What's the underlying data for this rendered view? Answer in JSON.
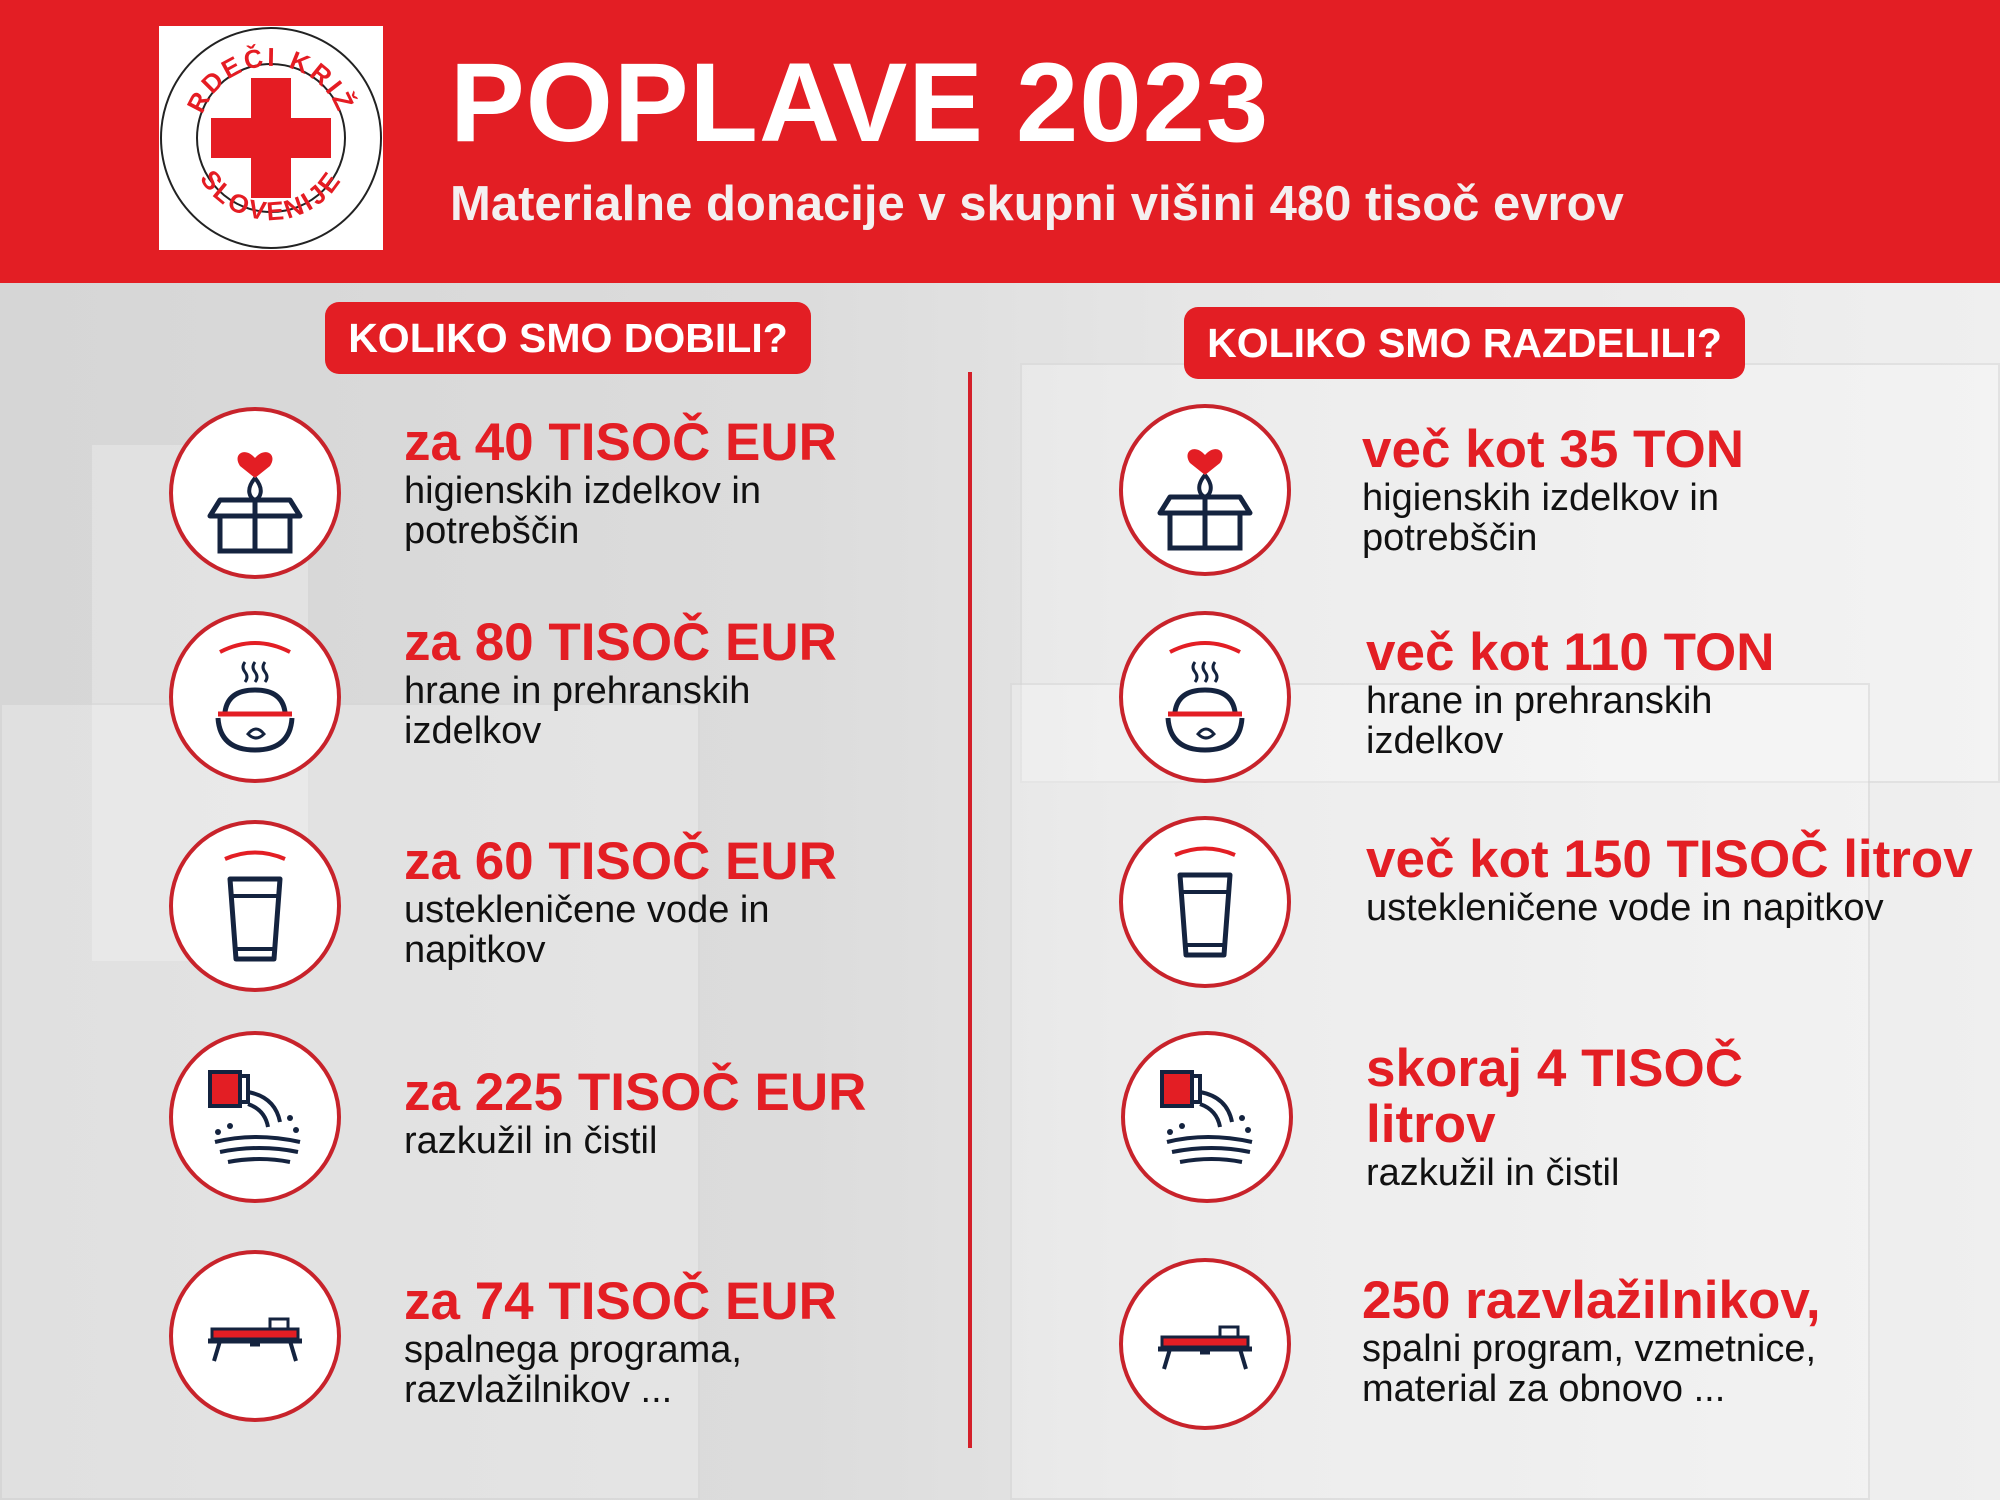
{
  "header": {
    "title": "POPLAVE 2023",
    "subtitle": "Materialne donacije v skupni višini 480 tisoč evrov",
    "logo_text_top": "RDEČI KRIŽ",
    "logo_text_bottom": "SLOVENIJE"
  },
  "colors": {
    "brand_red": "#e31e24",
    "icon_navy": "#14233f"
  },
  "received": {
    "heading": "KOLIKO SMO DOBILI?",
    "items": [
      {
        "icon": "gift-box-heart-icon",
        "amount": "za 40 TISOČ EUR",
        "line1": "higienskih izdelkov in",
        "line2": "potrebščin"
      },
      {
        "icon": "food-bowl-icon",
        "amount": "za 80 TISOČ EUR",
        "line1": "hrane in prehranskih",
        "line2": "izdelkov"
      },
      {
        "icon": "water-glass-icon",
        "amount": "za 60 TISOČ EUR",
        "line1": "ustekleničene vode in",
        "line2": "napitkov"
      },
      {
        "icon": "cleaning-bucket-icon",
        "amount": "za 225 TISOČ EUR",
        "line1": "razkužil in čistil",
        "line2": ""
      },
      {
        "icon": "bed-icon",
        "amount": "za 74 TISOČ EUR",
        "line1": "spalnega programa,",
        "line2": "razvlažilnikov ..."
      }
    ]
  },
  "distributed": {
    "heading": "KOLIKO SMO RAZDELILI?",
    "items": [
      {
        "icon": "gift-box-heart-icon",
        "amount": "več kot 35 TON",
        "line1": "higienskih izdelkov in",
        "line2": "potrebščin"
      },
      {
        "icon": "food-bowl-icon",
        "amount": "več kot 110 TON",
        "line1": "hrane in prehranskih",
        "line2": "izdelkov"
      },
      {
        "icon": "water-glass-icon",
        "amount": "več kot 150 TISOČ litrov",
        "line1": "ustekleničene vode in napitkov",
        "line2": ""
      },
      {
        "icon": "cleaning-bucket-icon",
        "amount": "skoraj 4 TISOČ litrov",
        "line1": "razkužil in čistil",
        "line2": ""
      },
      {
        "icon": "bed-icon",
        "amount": "250 razvlažilnikov,",
        "line1": "spalni program, vzmetnice,",
        "line2": "material za obnovo ..."
      }
    ]
  }
}
